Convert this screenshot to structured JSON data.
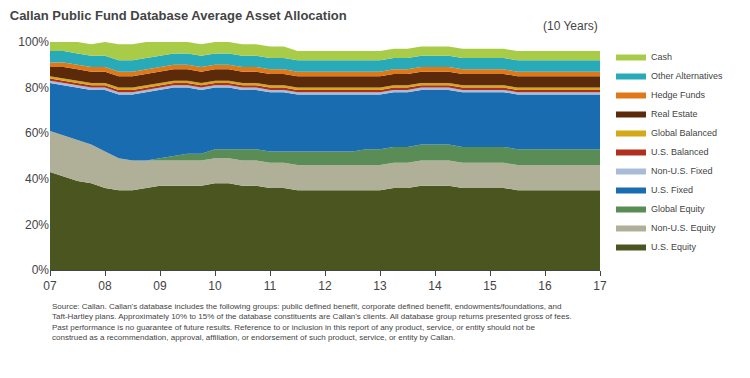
{
  "chart_data": {
    "type": "area",
    "stacked": true,
    "title": "Callan Public Fund Database Average Asset Allocation",
    "subtitle": "(10 Years)",
    "annotations": [
      "Source: Callan. Callan's database includes the following groups: public defined benefit, corporate defined benefit, endowments/foundations, and Taft-Hartley plans. Approximately 10% to 15% of the database constituents are Callan's clients. All database group returns presented gross of fees. Past performance is no guarantee of future results. Reference to or inclusion in this report of any product, service, or entity should not be construed as a recommendation, approval, affiliation, or endorsement of such product, service, or entity by Callan."
    ],
    "x": [
      2007,
      2007.25,
      2007.5,
      2007.75,
      2008,
      2008.25,
      2008.5,
      2008.75,
      2009,
      2009.25,
      2009.5,
      2009.75,
      2010,
      2010.25,
      2010.5,
      2010.75,
      2011,
      2011.25,
      2011.5,
      2011.75,
      2012,
      2012.25,
      2012.5,
      2012.75,
      2013,
      2013.25,
      2013.5,
      2013.75,
      2014,
      2014.25,
      2014.5,
      2014.75,
      2015,
      2015.25,
      2015.5,
      2015.75,
      2016,
      2016.25,
      2016.5,
      2016.75,
      2017
    ],
    "series": [
      {
        "name": "U.S. Equity",
        "color": "#4a5520",
        "values": [
          43,
          41,
          39,
          38,
          36,
          35,
          35,
          36,
          37,
          37,
          37,
          37,
          38,
          38,
          37,
          37,
          36,
          36,
          35,
          35,
          35,
          35,
          35,
          35,
          35,
          36,
          36,
          37,
          37,
          37,
          36,
          36,
          36,
          36,
          35,
          35,
          35,
          35,
          35,
          35,
          35
        ]
      },
      {
        "name": "Non-U.S. Equity",
        "color": "#b0b098",
        "values": [
          18,
          18,
          18,
          17,
          16,
          14,
          13,
          12,
          11,
          11,
          11,
          11,
          11,
          11,
          11,
          11,
          11,
          11,
          11,
          11,
          11,
          11,
          11,
          11,
          11,
          11,
          11,
          11,
          11,
          11,
          11,
          11,
          11,
          11,
          11,
          11,
          11,
          11,
          11,
          11,
          11
        ]
      },
      {
        "name": "Global Equity",
        "color": "#5a8c55",
        "values": [
          0,
          0,
          0,
          0,
          0,
          0,
          0,
          0,
          1,
          2,
          3,
          3,
          4,
          4,
          5,
          5,
          5,
          5,
          6,
          6,
          6,
          6,
          6,
          7,
          7,
          7,
          7,
          7,
          7,
          7,
          7,
          7,
          7,
          7,
          7,
          7,
          7,
          7,
          7,
          7,
          7
        ]
      },
      {
        "name": "U.S. Fixed",
        "color": "#1a6cb0",
        "values": [
          21,
          22,
          23,
          24,
          27,
          28,
          29,
          30,
          30,
          30,
          29,
          28,
          27,
          27,
          26,
          26,
          26,
          26,
          25,
          25,
          25,
          25,
          25,
          24,
          24,
          24,
          24,
          24,
          24,
          24,
          24,
          24,
          24,
          24,
          24,
          24,
          24,
          24,
          24,
          24,
          24
        ]
      },
      {
        "name": "Non-U.S. Fixed",
        "color": "#a8bcd8",
        "values": [
          1,
          1,
          1,
          1,
          1,
          1,
          1,
          1,
          1,
          1,
          1,
          1,
          1,
          1,
          1,
          1,
          1,
          1,
          1,
          1,
          1,
          1,
          1,
          1,
          1,
          1,
          1,
          1,
          1,
          1,
          1,
          1,
          1,
          1,
          1,
          1,
          1,
          1,
          1,
          1,
          1
        ]
      },
      {
        "name": "U.S. Balanced",
        "color": "#b03020",
        "values": [
          1,
          1,
          1,
          1,
          1,
          1,
          1,
          1,
          1,
          1,
          1,
          1,
          1,
          1,
          1,
          1,
          1,
          1,
          1,
          1,
          1,
          1,
          1,
          1,
          1,
          1,
          1,
          1,
          1,
          1,
          1,
          1,
          1,
          1,
          1,
          1,
          1,
          1,
          1,
          1,
          1
        ]
      },
      {
        "name": "Global Balanced",
        "color": "#d4a818",
        "values": [
          1,
          1,
          1,
          1,
          1,
          1,
          1,
          1,
          1,
          1,
          1,
          1,
          1,
          1,
          1,
          1,
          1,
          1,
          1,
          1,
          1,
          1,
          1,
          1,
          1,
          1,
          1,
          1,
          1,
          1,
          1,
          1,
          1,
          1,
          1,
          1,
          1,
          1,
          1,
          1,
          1
        ]
      },
      {
        "name": "Real Estate",
        "color": "#5a2a0a",
        "values": [
          4,
          5,
          5,
          5,
          5,
          5,
          5,
          5,
          5,
          5,
          5,
          5,
          5,
          5,
          5,
          5,
          5,
          5,
          5,
          5,
          5,
          5,
          5,
          5,
          5,
          5,
          5,
          5,
          5,
          5,
          5,
          5,
          5,
          5,
          5,
          5,
          5,
          5,
          5,
          5,
          5
        ]
      },
      {
        "name": "Hedge Funds",
        "color": "#e07818",
        "values": [
          2,
          2,
          2,
          2,
          2,
          2,
          2,
          2,
          2,
          2,
          2,
          2,
          2,
          2,
          2,
          2,
          2,
          2,
          2,
          2,
          2,
          2,
          2,
          2,
          2,
          2,
          2,
          2,
          2,
          2,
          2,
          2,
          2,
          2,
          2,
          2,
          2,
          2,
          2,
          2,
          2
        ]
      },
      {
        "name": "Other Alternatives",
        "color": "#28aab8",
        "values": [
          5,
          5,
          5,
          5,
          5,
          5,
          5,
          5,
          5,
          5,
          5,
          5,
          5,
          5,
          5,
          5,
          5,
          5,
          5,
          5,
          5,
          5,
          5,
          5,
          5,
          5,
          5,
          5,
          5,
          5,
          5,
          5,
          5,
          5,
          5,
          5,
          5,
          5,
          5,
          5,
          5
        ]
      },
      {
        "name": "Cash",
        "color": "#a8cc48",
        "values": [
          4,
          4,
          5,
          5,
          6,
          7,
          7,
          7,
          6,
          5,
          5,
          5,
          5,
          5,
          5,
          5,
          5,
          5,
          4,
          4,
          4,
          4,
          4,
          4,
          4,
          4,
          4,
          4,
          4,
          4,
          4,
          4,
          4,
          4,
          4,
          4,
          4,
          4,
          4,
          4,
          4
        ]
      }
    ],
    "xlim": [
      2007,
      2017
    ],
    "xticks": [
      {
        "value": 2007,
        "label": "07"
      },
      {
        "value": 2008,
        "label": "08"
      },
      {
        "value": 2009,
        "label": "09"
      },
      {
        "value": 2010,
        "label": "10"
      },
      {
        "value": 2011,
        "label": "11"
      },
      {
        "value": 2012,
        "label": "12"
      },
      {
        "value": 2013,
        "label": "13"
      },
      {
        "value": 2014,
        "label": "14"
      },
      {
        "value": 2015,
        "label": "15"
      },
      {
        "value": 2016,
        "label": "16"
      },
      {
        "value": 2017,
        "label": "17"
      }
    ],
    "ylim": [
      0,
      100
    ],
    "yticks": [
      {
        "value": 0,
        "label": "0%"
      },
      {
        "value": 20,
        "label": "20%"
      },
      {
        "value": 40,
        "label": "40%"
      },
      {
        "value": 60,
        "label": "60%"
      },
      {
        "value": 80,
        "label": "80%"
      },
      {
        "value": 100,
        "label": "100%"
      }
    ],
    "grid": true,
    "legend": "right"
  }
}
